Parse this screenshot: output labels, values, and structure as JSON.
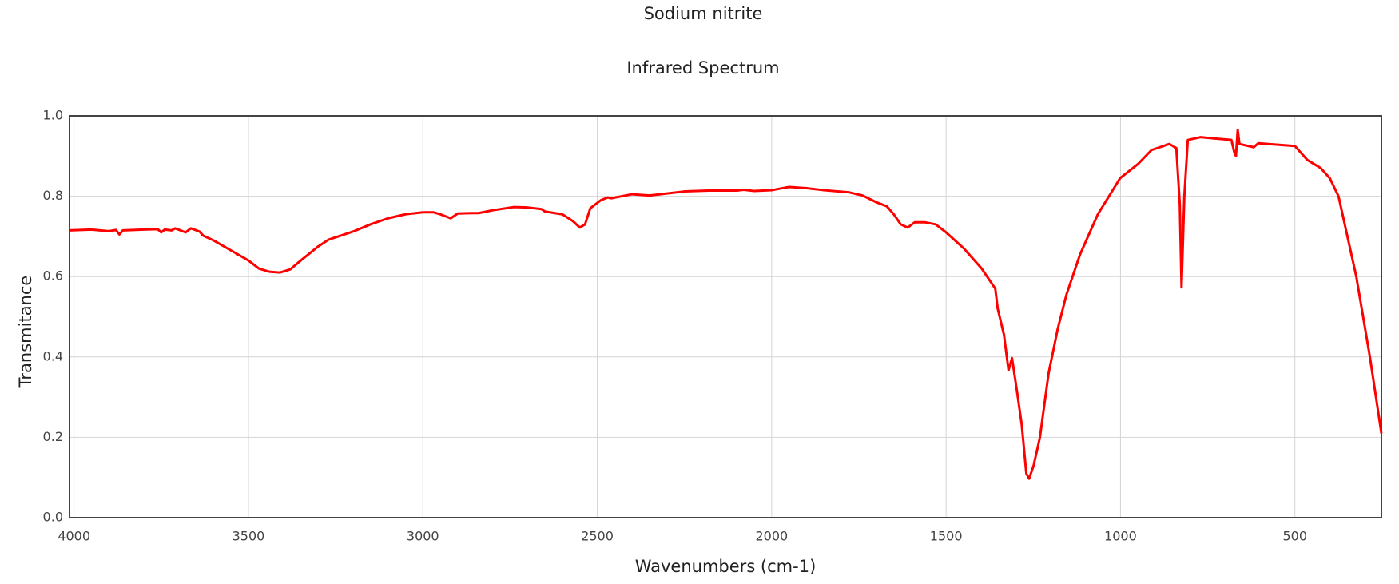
{
  "chart_data": {
    "type": "line",
    "title": "Sodium nitrite",
    "subtitle": "Infrared Spectrum",
    "x_label": "Wavenumbers (cm-1)",
    "y_label": "Transmitance",
    "xlim": [
      4013,
      252
    ],
    "ylim": [
      0,
      1
    ],
    "xticks": [
      4000,
      3500,
      3000,
      2500,
      2000,
      1500,
      1000,
      500
    ],
    "yticks": [
      {
        "value": 0,
        "label": "0.0"
      },
      0.2,
      0.4,
      0.6,
      0.8,
      {
        "value": 1,
        "label": "1.0"
      }
    ],
    "grid": true,
    "series": [
      {
        "color": "#ff0000",
        "x": [
          4013,
          3950,
          3900,
          3880,
          3870,
          3860,
          3800,
          3760,
          3750,
          3740,
          3720,
          3710,
          3680,
          3665,
          3640,
          3630,
          3600,
          3550,
          3500,
          3470,
          3440,
          3410,
          3380,
          3350,
          3300,
          3270,
          3200,
          3150,
          3100,
          3050,
          3000,
          2970,
          2950,
          2920,
          2900,
          2860,
          2840,
          2800,
          2740,
          2700,
          2660,
          2650,
          2600,
          2570,
          2550,
          2535,
          2520,
          2490,
          2470,
          2460,
          2400,
          2350,
          2300,
          2250,
          2180,
          2100,
          2080,
          2050,
          2000,
          1970,
          1950,
          1900,
          1850,
          1780,
          1740,
          1700,
          1670,
          1650,
          1630,
          1610,
          1590,
          1560,
          1530,
          1500,
          1449,
          1398,
          1359,
          1352,
          1334,
          1321,
          1311,
          1296,
          1283,
          1270,
          1262,
          1249,
          1231,
          1206,
          1180,
          1155,
          1116,
          1065,
          1001,
          950,
          911,
          860,
          840,
          830,
          825,
          817,
          807,
          771,
          682,
          674,
          669,
          664,
          659,
          618,
          605,
          500,
          464,
          426,
          400,
          375,
          324,
          285,
          252
        ],
        "values": [
          0.715,
          0.717,
          0.713,
          0.716,
          0.705,
          0.715,
          0.717,
          0.718,
          0.71,
          0.717,
          0.715,
          0.72,
          0.71,
          0.72,
          0.712,
          0.702,
          0.69,
          0.665,
          0.64,
          0.62,
          0.612,
          0.61,
          0.618,
          0.64,
          0.675,
          0.692,
          0.712,
          0.73,
          0.745,
          0.755,
          0.76,
          0.76,
          0.755,
          0.745,
          0.757,
          0.758,
          0.758,
          0.765,
          0.773,
          0.772,
          0.768,
          0.762,
          0.755,
          0.738,
          0.722,
          0.73,
          0.77,
          0.79,
          0.797,
          0.795,
          0.805,
          0.802,
          0.807,
          0.812,
          0.814,
          0.814,
          0.816,
          0.813,
          0.815,
          0.82,
          0.823,
          0.82,
          0.815,
          0.81,
          0.802,
          0.785,
          0.775,
          0.755,
          0.73,
          0.722,
          0.735,
          0.735,
          0.73,
          0.71,
          0.67,
          0.62,
          0.57,
          0.52,
          0.455,
          0.367,
          0.397,
          0.31,
          0.23,
          0.11,
          0.097,
          0.13,
          0.2,
          0.36,
          0.47,
          0.555,
          0.655,
          0.755,
          0.845,
          0.88,
          0.915,
          0.93,
          0.92,
          0.78,
          0.573,
          0.8,
          0.94,
          0.947,
          0.94,
          0.91,
          0.9,
          0.965,
          0.93,
          0.922,
          0.932,
          0.925,
          0.89,
          0.87,
          0.845,
          0.8,
          0.6,
          0.4,
          0.21
        ]
      }
    ]
  }
}
